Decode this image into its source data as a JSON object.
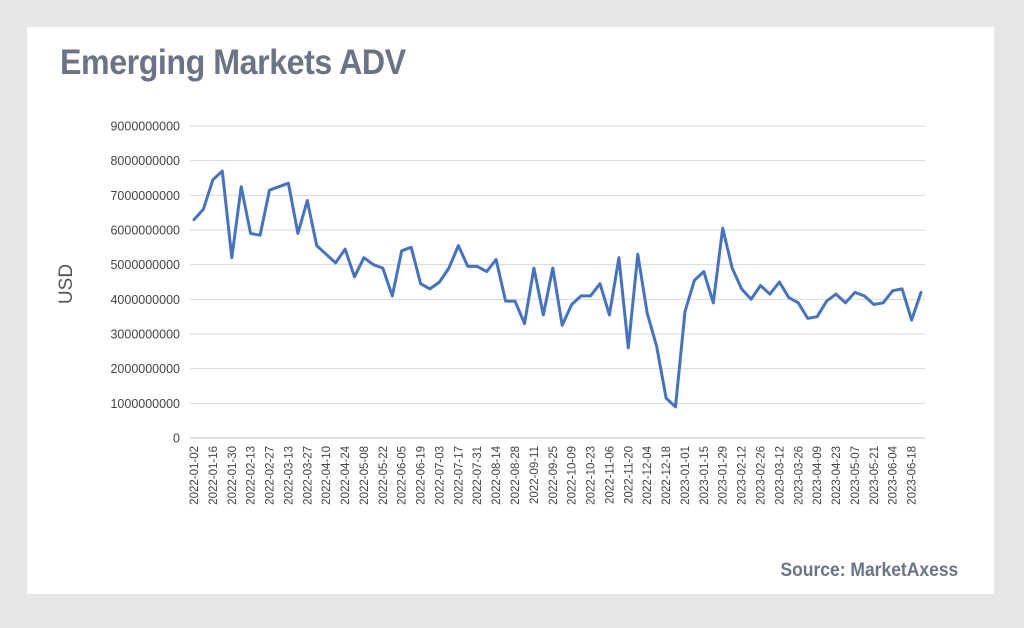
{
  "title": "Emerging Markets ADV",
  "source": "Source: MarketAxess",
  "chart_data": {
    "type": "line",
    "title": "Emerging Markets ADV",
    "xlabel": "",
    "ylabel": "USD",
    "ylim": [
      0,
      9000000000
    ],
    "yticks": [
      0,
      1000000000,
      2000000000,
      3000000000,
      4000000000,
      5000000000,
      6000000000,
      7000000000,
      8000000000,
      9000000000
    ],
    "grid": true,
    "legend": "none",
    "line_color": "#4472c4",
    "x": [
      "2022-01-02",
      "2022-01-09",
      "2022-01-16",
      "2022-01-23",
      "2022-01-30",
      "2022-02-06",
      "2022-02-13",
      "2022-02-20",
      "2022-02-27",
      "2022-03-06",
      "2022-03-13",
      "2022-03-20",
      "2022-03-27",
      "2022-04-03",
      "2022-04-10",
      "2022-04-17",
      "2022-04-24",
      "2022-05-01",
      "2022-05-08",
      "2022-05-15",
      "2022-05-22",
      "2022-05-29",
      "2022-06-05",
      "2022-06-12",
      "2022-06-19",
      "2022-06-26",
      "2022-07-03",
      "2022-07-10",
      "2022-07-17",
      "2022-07-24",
      "2022-07-31",
      "2022-08-07",
      "2022-08-14",
      "2022-08-21",
      "2022-08-28",
      "2022-09-04",
      "2022-09-11",
      "2022-09-18",
      "2022-09-25",
      "2022-10-02",
      "2022-10-09",
      "2022-10-16",
      "2022-10-23",
      "2022-10-30",
      "2022-11-06",
      "2022-11-13",
      "2022-11-20",
      "2022-11-27",
      "2022-12-04",
      "2022-12-11",
      "2022-12-18",
      "2022-12-25",
      "2023-01-01",
      "2023-01-08",
      "2023-01-15",
      "2023-01-22",
      "2023-01-29",
      "2023-02-05",
      "2023-02-12",
      "2023-02-19",
      "2023-02-26",
      "2023-03-05",
      "2023-03-12",
      "2023-03-19",
      "2023-03-26",
      "2023-04-02",
      "2023-04-09",
      "2023-04-16",
      "2023-04-23",
      "2023-04-30",
      "2023-05-07",
      "2023-05-14",
      "2023-05-21",
      "2023-05-28",
      "2023-06-04",
      "2023-06-11",
      "2023-06-18",
      "2023-06-25"
    ],
    "tick_labels": [
      "2022-01-02",
      "2022-01-16",
      "2022-01-30",
      "2022-02-13",
      "2022-02-27",
      "2022-03-13",
      "2022-03-27",
      "2022-04-10",
      "2022-04-24",
      "2022-05-08",
      "2022-05-22",
      "2022-06-05",
      "2022-06-19",
      "2022-07-03",
      "2022-07-17",
      "2022-07-31",
      "2022-08-14",
      "2022-08-28",
      "2022-09-11",
      "2022-09-25",
      "2022-10-09",
      "2022-10-23",
      "2022-11-06",
      "2022-11-20",
      "2022-12-04",
      "2022-12-18",
      "2023-01-01",
      "2023-01-15",
      "2023-01-29",
      "2023-02-12",
      "2023-02-26",
      "2023-03-12",
      "2023-03-26",
      "2023-04-09",
      "2023-04-23",
      "2023-05-07",
      "2023-05-21",
      "2023-06-04",
      "2023-06-18"
    ],
    "series": [
      {
        "values": [
          6300000000,
          6600000000,
          7450000000,
          7700000000,
          5200000000,
          7250000000,
          5900000000,
          5850000000,
          7150000000,
          7250000000,
          7350000000,
          5900000000,
          6850000000,
          5550000000,
          5300000000,
          5050000000,
          5450000000,
          4650000000,
          5200000000,
          5000000000,
          4900000000,
          4100000000,
          5400000000,
          5500000000,
          4450000000,
          4300000000,
          4500000000,
          4900000000,
          5550000000,
          4950000000,
          4950000000,
          4800000000,
          5150000000,
          3950000000,
          3950000000,
          3300000000,
          4900000000,
          3550000000,
          4900000000,
          3250000000,
          3850000000,
          4100000000,
          4100000000,
          4450000000,
          3550000000,
          5200000000,
          2600000000,
          5300000000,
          3600000000,
          2650000000,
          1150000000,
          900000000,
          3650000000,
          4550000000,
          4800000000,
          3900000000,
          6050000000,
          4900000000,
          4300000000,
          4000000000,
          4400000000,
          4150000000,
          4500000000,
          4050000000,
          3900000000,
          3450000000,
          3500000000,
          3950000000,
          4150000000,
          3900000000,
          4200000000,
          4100000000,
          3850000000,
          3900000000,
          4250000000,
          4300000000,
          3400000000,
          4200000000
        ]
      }
    ]
  }
}
